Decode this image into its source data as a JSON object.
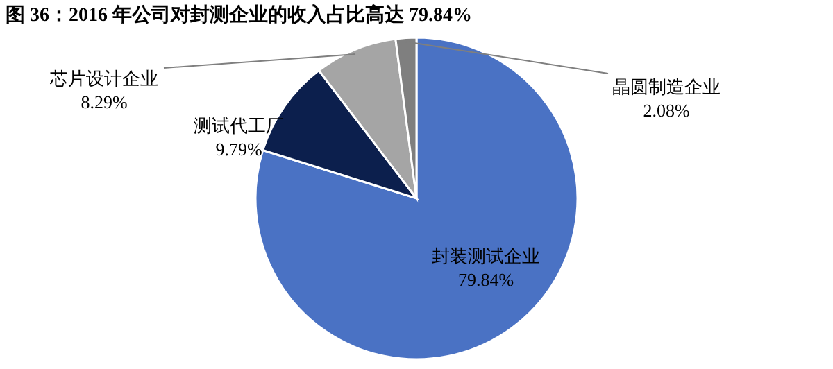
{
  "chart_data": {
    "type": "pie",
    "title": "图 36：2016 年公司对封测企业的收入占比高达 79.84%",
    "categories": [
      "封装测试企业",
      "测试代工厂",
      "芯片设计企业",
      "晶圆制造企业"
    ],
    "values": [
      79.84,
      9.79,
      8.29,
      2.08
    ],
    "colors": [
      "#4a72c4",
      "#0c1f4d",
      "#a5a5a5",
      "#7f7f7f"
    ],
    "value_labels": [
      "79.84%",
      "9.79%",
      "8.29%",
      "2.08%"
    ],
    "legend": false
  }
}
